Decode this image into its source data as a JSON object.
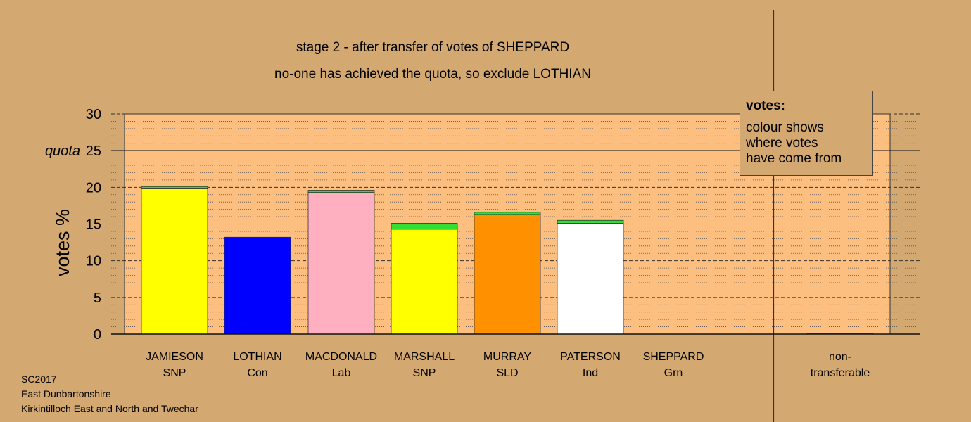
{
  "chart_data": {
    "type": "bar",
    "title": "stage 2 - after transfer of votes of SHEPPARD",
    "subtitle": "no-one has achieved the quota, so exclude LOTHIAN",
    "ylabel": "votes %",
    "ylim": [
      0,
      30
    ],
    "yticks": [
      0,
      5,
      10,
      15,
      20,
      25,
      30
    ],
    "quota": {
      "label": "quota",
      "value": 25
    },
    "grid": true,
    "categories": [
      {
        "name": "JAMIESON",
        "party": "SNP"
      },
      {
        "name": "LOTHIAN",
        "party": "Con"
      },
      {
        "name": "MACDONALD",
        "party": "Lab"
      },
      {
        "name": "MARSHALL",
        "party": "SNP"
      },
      {
        "name": "MURRAY",
        "party": "SLD"
      },
      {
        "name": "PATERSON",
        "party": "Ind"
      },
      {
        "name": "SHEPPARD",
        "party": "Grn"
      },
      {
        "name": "non-",
        "party": "transferable"
      }
    ],
    "series": [
      {
        "color": "#ffff00",
        "values": [
          19.8,
          0,
          0,
          14.3,
          0,
          0,
          0,
          0
        ]
      },
      {
        "color": "#0000ff",
        "values": [
          0,
          13.2,
          0,
          0,
          0,
          0,
          0,
          0
        ]
      },
      {
        "color": "#ffb0c0",
        "values": [
          0,
          0,
          19.3,
          0,
          0,
          0,
          0,
          0
        ]
      },
      {
        "color": "#ff9000",
        "values": [
          0,
          0,
          0,
          0,
          16.3,
          0,
          0,
          0
        ]
      },
      {
        "color": "#ffffff",
        "values": [
          0,
          0,
          0,
          0,
          0,
          15.1,
          0,
          0
        ]
      },
      {
        "color": "#33dd33",
        "values": [
          0.3,
          0,
          0.3,
          0.8,
          0.3,
          0.4,
          0,
          0.1
        ]
      }
    ],
    "legend": {
      "title": "votes:",
      "text": "colour shows\nwhere votes\nhave come from"
    }
  },
  "footer": {
    "line1": "SC2017",
    "line2": "East Dunbartonshire",
    "line3": "Kirkintilloch East and North and Twechar"
  }
}
